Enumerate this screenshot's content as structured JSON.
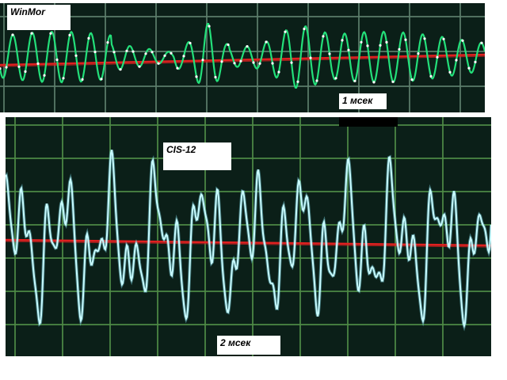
{
  "panels": {
    "top": {
      "title": "WinMor",
      "time_label": "1 мсек",
      "colors": {
        "background": "#0b1f18",
        "grid": "#5d7f6c",
        "signal": "#23e07a",
        "signal_dots": "#ffffff",
        "reference": "#e02020"
      }
    },
    "bottom": {
      "title": "CIS-12",
      "time_label": "2 мсек",
      "colors": {
        "background": "#0b1f18",
        "grid": "#4f8c46",
        "signal": "#c8fbff",
        "reference": "#e02020"
      }
    }
  }
}
